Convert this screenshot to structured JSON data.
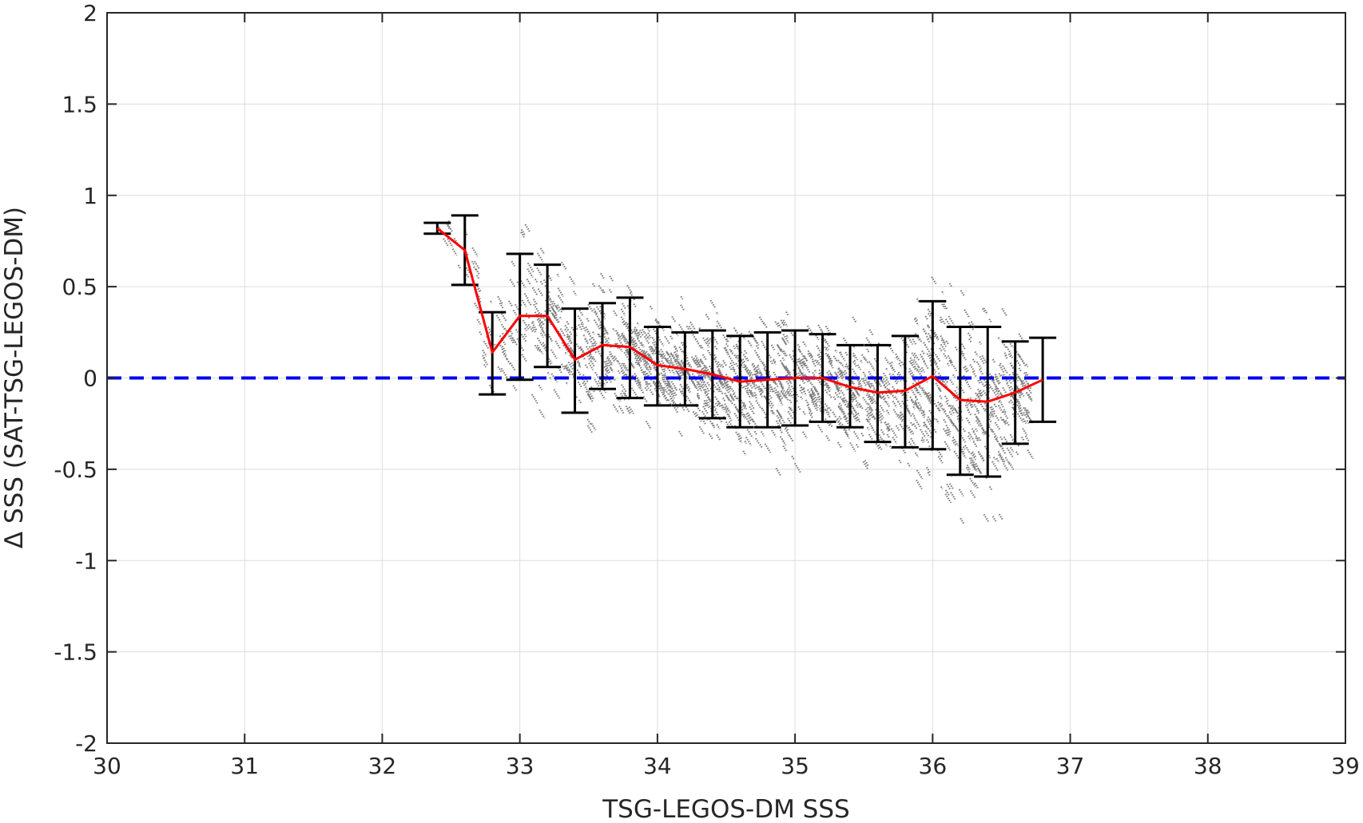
{
  "chart_data": {
    "type": "scatter",
    "title": "",
    "xlabel": "TSG-LEGOS-DM SSS",
    "ylabel": "Δ SSS (SAT-TSG-LEGOS-DM)",
    "xlim": [
      30,
      39
    ],
    "ylim": [
      -2,
      2
    ],
    "xticks": [
      "30",
      "31",
      "32",
      "33",
      "34",
      "35",
      "36",
      "37",
      "38",
      "39"
    ],
    "yticks": [
      "2",
      "1.5",
      "1",
      "0.5",
      "0",
      "-0.5",
      "-1",
      "-1.5",
      "-2"
    ],
    "grid": true,
    "colors": {
      "scatter": "#808080",
      "mean_line": "#ff0000",
      "error_bars": "#000000",
      "zero_line": "#0000ee",
      "grid": "#dcdcdc",
      "axes": "#262626"
    },
    "zero_line": {
      "y": 0,
      "style": "dashed"
    },
    "series": [
      {
        "kind": "binned-mean-with-std",
        "x": [
          32.4,
          32.6,
          32.8,
          33.0,
          33.2,
          33.4,
          33.6,
          33.8,
          34.0,
          34.2,
          34.4,
          34.6,
          34.8,
          35.0,
          35.2,
          35.4,
          35.6,
          35.8,
          36.0,
          36.2,
          36.4,
          36.6,
          36.8
        ],
        "mean": [
          0.82,
          0.7,
          0.14,
          0.34,
          0.34,
          0.1,
          0.18,
          0.17,
          0.07,
          0.05,
          0.02,
          -0.02,
          -0.01,
          0.0,
          0.0,
          -0.05,
          -0.08,
          -0.07,
          0.01,
          -0.12,
          -0.13,
          -0.08,
          -0.01
        ],
        "upper": [
          0.85,
          0.89,
          0.36,
          0.68,
          0.62,
          0.38,
          0.41,
          0.44,
          0.28,
          0.25,
          0.26,
          0.23,
          0.25,
          0.26,
          0.24,
          0.18,
          0.18,
          0.23,
          0.42,
          0.28,
          0.28,
          0.2,
          0.22
        ],
        "lower": [
          0.79,
          0.51,
          -0.09,
          -0.01,
          0.06,
          -0.19,
          -0.06,
          -0.11,
          -0.15,
          -0.15,
          -0.22,
          -0.27,
          -0.27,
          -0.26,
          -0.24,
          -0.27,
          -0.35,
          -0.38,
          -0.39,
          -0.53,
          -0.54,
          -0.36,
          -0.24
        ]
      }
    ],
    "scatter_cloud": {
      "x_range": [
        32.4,
        36.7
      ],
      "note": "dense grey points"
    }
  }
}
